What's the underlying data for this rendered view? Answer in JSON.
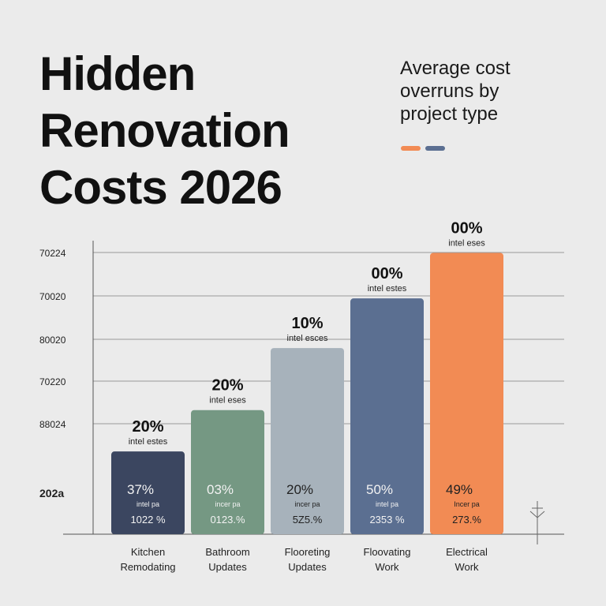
{
  "header": {
    "title_lines": [
      "Hidden",
      "Renovation",
      "Costs 2026"
    ],
    "subtitle_lines": [
      "Average cost",
      "overruns by",
      "project type"
    ],
    "swatch_colors": [
      "#f28b54",
      "#5b6f91"
    ]
  },
  "chart_data": {
    "type": "bar",
    "title": "Hidden Renovation Costs 2026",
    "subtitle": "Average cost overruns by project type",
    "y_tick_labels": [
      "70224",
      "70020",
      "80020",
      "70220",
      "88024",
      "202a"
    ],
    "categories": [
      [
        "Kitchen",
        "Remodating"
      ],
      [
        "Bathroom",
        "Updates"
      ],
      [
        "Flooreting",
        "Updates"
      ],
      [
        "Floovating",
        "Work"
      ],
      [
        "Electrical",
        "Work"
      ]
    ],
    "values": [
      20,
      30,
      45,
      57,
      68
    ],
    "ylim": [
      0,
      70
    ],
    "colors": [
      "#3b4660",
      "#759883",
      "#a7b2bb",
      "#5b6f91",
      "#f28b54"
    ],
    "top_labels": [
      {
        "value": "20%",
        "note": "intel estes"
      },
      {
        "value": "20%",
        "note": "intel eses"
      },
      {
        "value": "10%",
        "note": "intel esces"
      },
      {
        "value": "00%",
        "note": "intel estes"
      },
      {
        "value": "00%",
        "note": "intel eses"
      }
    ],
    "inner_labels": [
      {
        "pct": "37%",
        "note": "intel pa",
        "amount": "1022 %"
      },
      {
        "pct": "03%",
        "note": "incer pa",
        "amount": "0123.%"
      },
      {
        "pct": "20%",
        "note": "incer pa",
        "amount": "5Z5.%"
      },
      {
        "pct": "50%",
        "note": "intel pa",
        "amount": "2353 %"
      },
      {
        "pct": "49%",
        "note": "Incer pa",
        "amount": "273.%"
      }
    ],
    "grid": true,
    "legend": "none"
  }
}
